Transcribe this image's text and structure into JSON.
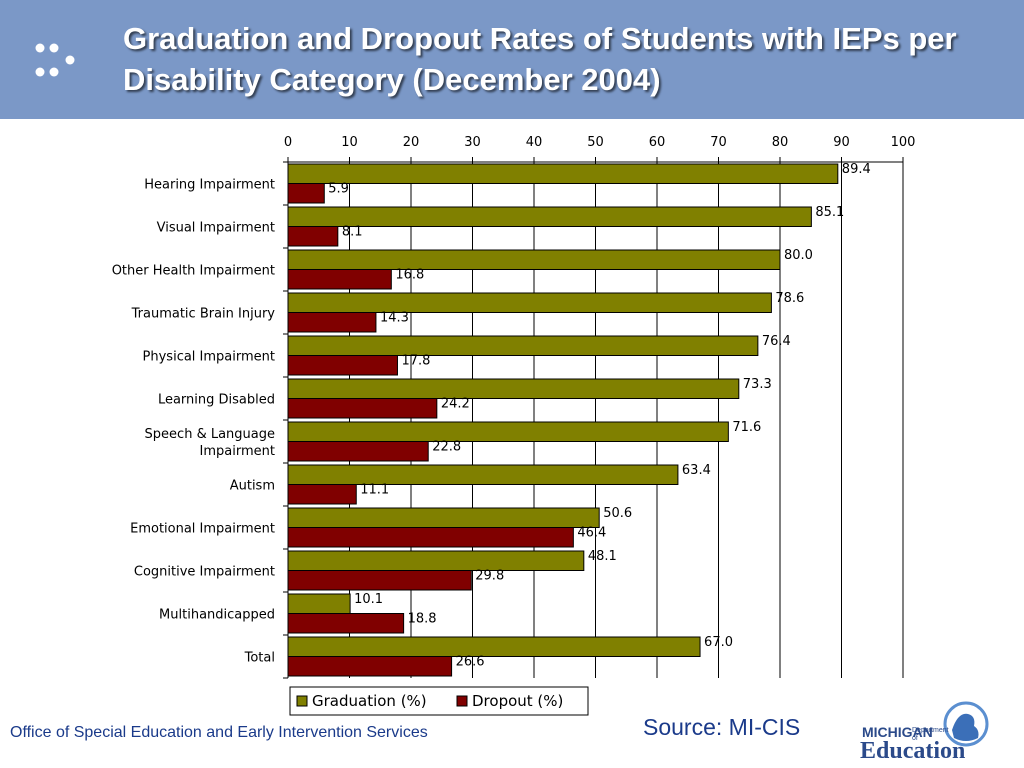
{
  "slide": {
    "title": "Graduation and Dropout Rates of Students with IEPs per Disability Category (December 2004)",
    "footer_left": "Office of Special Education and Early Intervention Services",
    "source": "Source: MI-CIS",
    "logo": {
      "line1": "MICHIGAN",
      "line2": "Department of",
      "line3": "Education"
    },
    "header_color": "#7b98c7"
  },
  "chart_data": {
    "type": "bar",
    "orientation": "horizontal",
    "title": "",
    "xlabel": "",
    "ylabel": "",
    "xlim": [
      0,
      100
    ],
    "x_ticks": [
      0,
      10,
      20,
      30,
      40,
      50,
      60,
      70,
      80,
      90,
      100
    ],
    "x_axis_position": "top",
    "grid": true,
    "legend_position": "bottom",
    "categories": [
      [
        "Hearing Impairment"
      ],
      [
        "Visual Impairment"
      ],
      [
        "Other Health Impairment"
      ],
      [
        "Traumatic Brain Injury"
      ],
      [
        "Physical Impairment"
      ],
      [
        "Learning Disabled"
      ],
      [
        "Speech & Language",
        "Impairment"
      ],
      [
        "Autism"
      ],
      [
        "Emotional Impairment"
      ],
      [
        "Cognitive Impairment"
      ],
      [
        "Multihandicapped"
      ],
      [
        "Total"
      ]
    ],
    "series": [
      {
        "name": "Graduation (%)",
        "color": "#808000",
        "values": [
          89.4,
          85.1,
          80.0,
          78.6,
          76.4,
          73.3,
          71.6,
          63.4,
          50.6,
          48.1,
          10.1,
          67.0
        ],
        "labels": [
          "89.4",
          "85.1",
          "80.0",
          "78.6",
          "76.4",
          "73.3",
          "71.6",
          "63.4",
          "50.6",
          "48.1",
          "10.1",
          "67.0"
        ]
      },
      {
        "name": "Dropout (%)",
        "color": "#800000",
        "values": [
          5.9,
          8.1,
          16.8,
          14.3,
          17.8,
          24.2,
          22.8,
          11.1,
          46.4,
          29.8,
          18.8,
          26.6
        ],
        "labels": [
          "5.9",
          "8.1",
          "16.8",
          "14.3",
          "17.8",
          "24.2",
          "22.8",
          "11.1",
          "46.4",
          "29.8",
          "18.8",
          "26.6"
        ]
      }
    ]
  }
}
